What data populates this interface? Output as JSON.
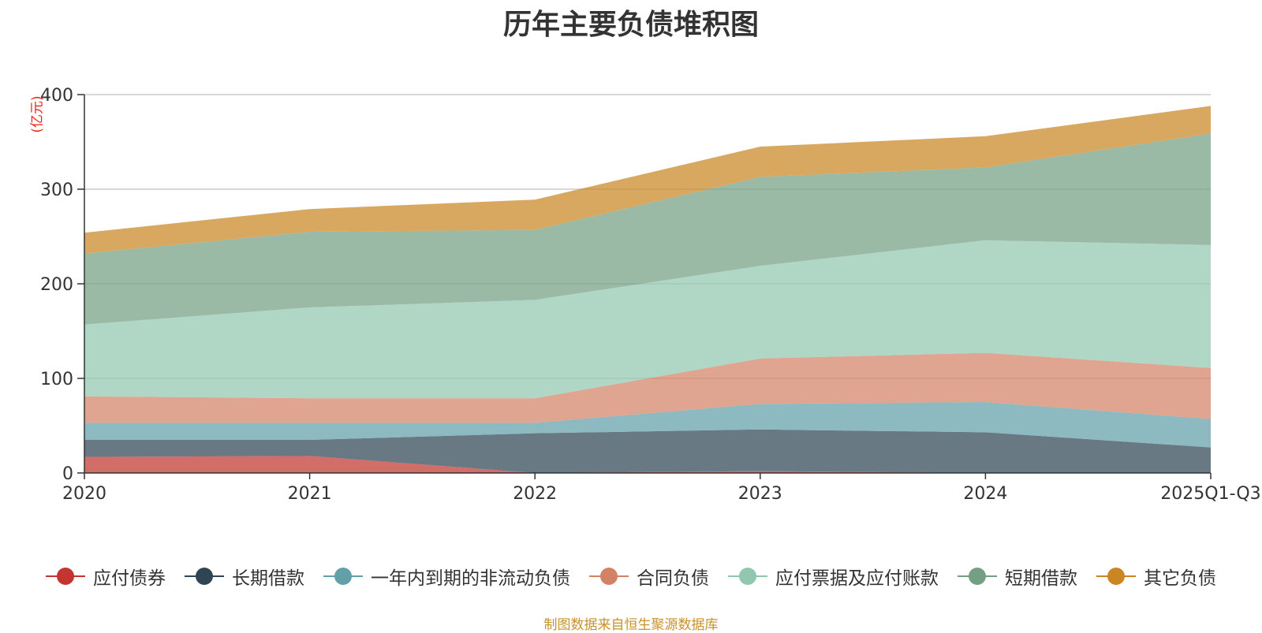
{
  "chart_data": {
    "type": "area",
    "stacked": true,
    "title": "历年主要负债堆积图",
    "unit_label": "(亿元)",
    "categories": [
      "2020",
      "2021",
      "2022",
      "2023",
      "2024",
      "2025Q1-Q3"
    ],
    "yticks": [
      0,
      100,
      200,
      300,
      400
    ],
    "ylim": [
      0,
      400
    ],
    "grid": true,
    "legend_position": "bottom",
    "series": [
      {
        "name": "应付债券",
        "color": "#c23531",
        "values": [
          17,
          18,
          0,
          2,
          0,
          0
        ]
      },
      {
        "name": "长期借款",
        "color": "#2f4554",
        "values": [
          18,
          17,
          42,
          44,
          43,
          27
        ]
      },
      {
        "name": "一年内到期的非流动负债",
        "color": "#61a0a8",
        "values": [
          18,
          18,
          11,
          27,
          32,
          30
        ]
      },
      {
        "name": "合同负债",
        "color": "#d48265",
        "values": [
          28,
          26,
          26,
          48,
          52,
          54
        ]
      },
      {
        "name": "应付票据及应付账款",
        "color": "#91c7ae",
        "values": [
          76,
          96,
          104,
          98,
          119,
          130
        ]
      },
      {
        "name": "短期借款",
        "color": "#749f83",
        "values": [
          75,
          80,
          74,
          94,
          77,
          118
        ]
      },
      {
        "name": "其它负债",
        "color": "#ca8622",
        "values": [
          22,
          24,
          32,
          32,
          33,
          29
        ]
      }
    ],
    "source": "制图数据来自恒生聚源数据库"
  }
}
